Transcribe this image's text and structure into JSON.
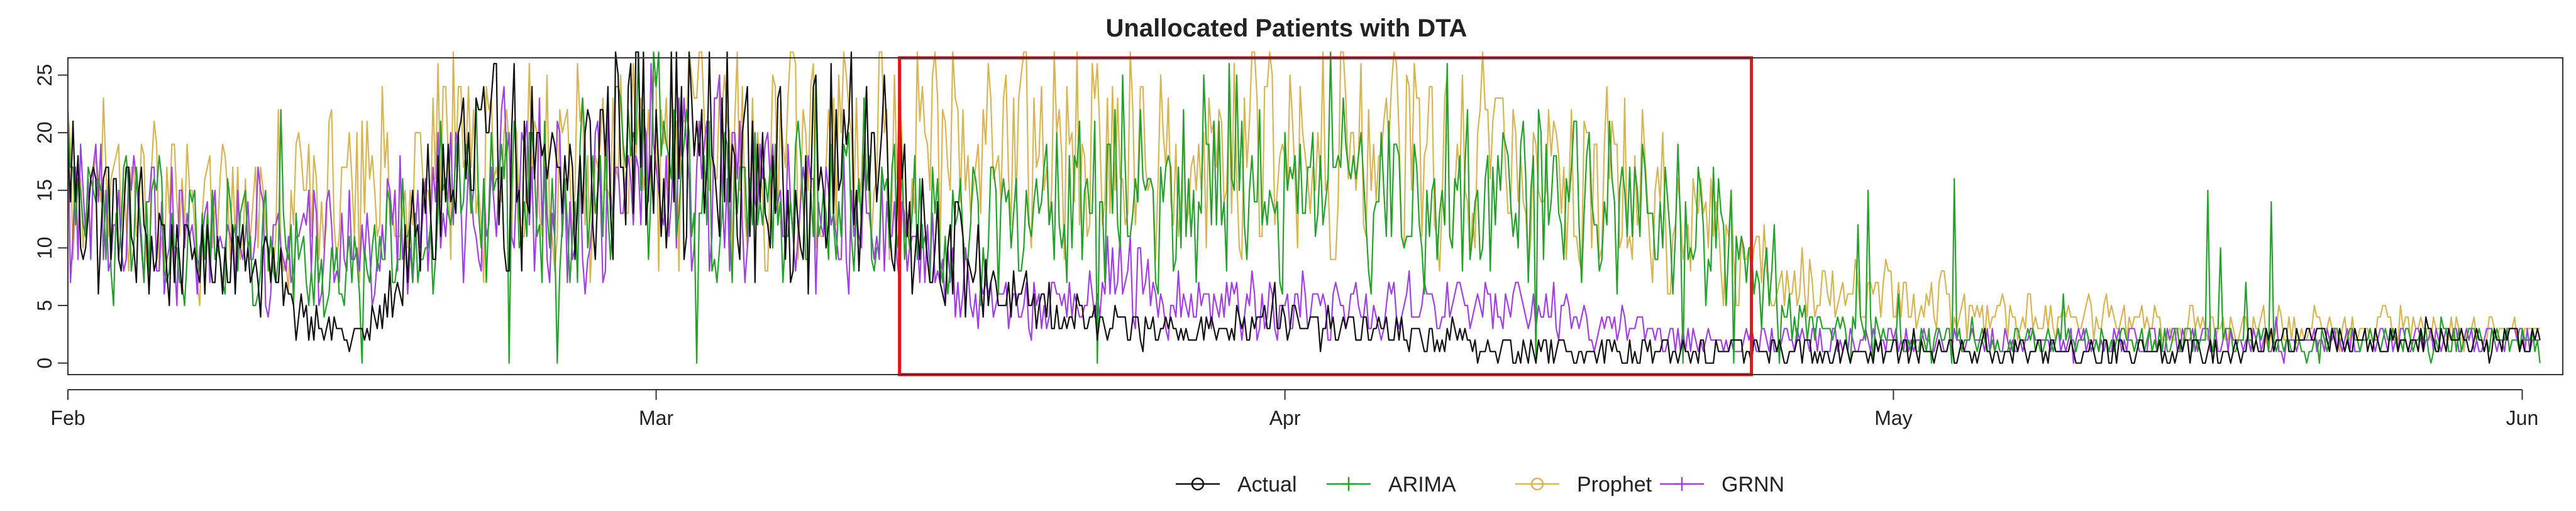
{
  "chart_data": {
    "type": "line",
    "title": "Unallocated Patients with DTA",
    "xlabel": "",
    "ylabel": "",
    "x_range": [
      "2020-02-01",
      "2020-06-03"
    ],
    "ylim": [
      -1,
      26.5
    ],
    "y_ticks": [
      0,
      5,
      10,
      15,
      20,
      25
    ],
    "x_ticks": [
      {
        "date": "2020-02-01",
        "label": "Feb"
      },
      {
        "date": "2020-03-01",
        "label": "Mar"
      },
      {
        "date": "2020-04-01",
        "label": "Apr"
      },
      {
        "date": "2020-05-01",
        "label": "May"
      },
      {
        "date": "2020-06-01",
        "label": "Jun"
      }
    ],
    "grid": false,
    "legend_position": "bottom",
    "highlight_box": {
      "start": "2020-03-13",
      "end": "2020-04-24",
      "y_from": -1,
      "y_to": 26.5,
      "color": "#e8121a"
    },
    "series": [
      {
        "name": "Actual",
        "marker": "circle",
        "color": "#111111",
        "daily_levels": [
          16,
          14,
          13,
          12,
          11,
          10,
          9,
          9,
          10,
          9,
          8,
          5,
          4,
          3,
          2,
          3,
          6,
          10,
          14,
          16,
          18,
          17,
          17,
          16,
          15,
          15,
          17,
          20,
          21,
          20,
          19,
          18,
          17,
          17,
          16,
          15,
          15,
          16,
          17,
          18,
          19,
          17,
          12,
          10,
          9,
          8,
          6,
          5,
          5,
          4,
          4,
          3,
          3,
          3,
          3,
          3,
          3,
          3,
          4,
          5,
          4,
          3,
          3,
          3,
          3,
          3,
          2,
          2,
          2,
          2,
          1,
          1,
          1,
          1,
          1,
          1,
          1,
          1,
          1,
          1,
          1,
          1,
          1,
          1,
          1,
          1,
          1,
          1,
          1,
          1,
          1,
          1,
          1,
          1,
          1,
          1,
          1,
          1,
          1,
          1,
          1,
          1,
          1,
          1,
          1,
          1,
          1,
          1,
          2,
          2,
          2,
          3,
          2,
          2,
          2,
          2,
          2,
          2,
          2,
          2,
          2,
          2
        ]
      },
      {
        "name": "ARIMA",
        "marker": "plus",
        "color": "#23a12a",
        "daily_levels": [
          15,
          14,
          13,
          12,
          12,
          11,
          11,
          10,
          10,
          10,
          10,
          9,
          8,
          8,
          8,
          9,
          10,
          12,
          13,
          14,
          15,
          15,
          14,
          14,
          13,
          13,
          14,
          16,
          17,
          17,
          16,
          16,
          15,
          15,
          14,
          13,
          13,
          13,
          14,
          15,
          15,
          14,
          13,
          12,
          12,
          12,
          13,
          13,
          14,
          14,
          14,
          15,
          15,
          15,
          15,
          16,
          16,
          16,
          16,
          16,
          15,
          15,
          15,
          15,
          15,
          14,
          14,
          14,
          14,
          14,
          14,
          14,
          14,
          14,
          14,
          14,
          13,
          13,
          13,
          12,
          12,
          11,
          10,
          8,
          6,
          4,
          3,
          3,
          3,
          3,
          2,
          2,
          2,
          2,
          2,
          2,
          2,
          2,
          2,
          2,
          2,
          2,
          2,
          2,
          2,
          2,
          2,
          2,
          2,
          2,
          2,
          2,
          2,
          2,
          2,
          2,
          2,
          2,
          2,
          2,
          2,
          2
        ]
      },
      {
        "name": "Prophet",
        "marker": "circle",
        "color": "#d8b553",
        "daily_levels": [
          15,
          15,
          14,
          14,
          14,
          13,
          13,
          13,
          14,
          14,
          14,
          14,
          14,
          15,
          15,
          16,
          16,
          17,
          18,
          18,
          18,
          18,
          17,
          17,
          17,
          17,
          17,
          18,
          19,
          19,
          19,
          19,
          18,
          18,
          18,
          18,
          18,
          18,
          19,
          19,
          19,
          19,
          19,
          19,
          19,
          19,
          19,
          19,
          19,
          19,
          18,
          18,
          18,
          18,
          18,
          18,
          18,
          18,
          18,
          18,
          18,
          18,
          18,
          18,
          18,
          18,
          18,
          18,
          17,
          17,
          17,
          17,
          17,
          17,
          16,
          16,
          16,
          15,
          14,
          13,
          12,
          11,
          10,
          9,
          8,
          7,
          7,
          6,
          6,
          6,
          6,
          5,
          5,
          5,
          5,
          5,
          4,
          4,
          4,
          4,
          4,
          4,
          4,
          3,
          3,
          3,
          3,
          3,
          3,
          3,
          3,
          3,
          3,
          3,
          3,
          3,
          3,
          3,
          3,
          3,
          3,
          3
        ]
      },
      {
        "name": "GRNN",
        "marker": "plus",
        "color": "#a13ee6",
        "daily_levels": [
          15,
          14,
          14,
          13,
          13,
          12,
          12,
          12,
          11,
          11,
          10,
          10,
          10,
          10,
          10,
          11,
          12,
          13,
          14,
          15,
          16,
          16,
          16,
          15,
          15,
          15,
          16,
          17,
          18,
          18,
          17,
          17,
          16,
          16,
          15,
          14,
          13,
          12,
          12,
          12,
          11,
          11,
          10,
          8,
          7,
          6,
          5,
          5,
          5,
          5,
          6,
          7,
          8,
          7,
          5,
          5,
          5,
          5,
          5,
          5,
          5,
          5,
          5,
          5,
          5,
          5,
          5,
          5,
          5,
          5,
          5,
          5,
          5,
          5,
          4,
          3,
          3,
          3,
          3,
          2,
          2,
          2,
          2,
          2,
          2,
          2,
          2,
          2,
          2,
          2,
          2,
          2,
          2,
          2,
          2,
          2,
          2,
          2,
          2,
          2,
          2,
          2,
          2,
          2,
          2,
          2,
          2,
          2,
          2,
          2,
          2,
          2,
          2,
          2,
          2,
          2,
          2,
          2,
          2,
          2,
          2,
          2
        ]
      }
    ]
  }
}
